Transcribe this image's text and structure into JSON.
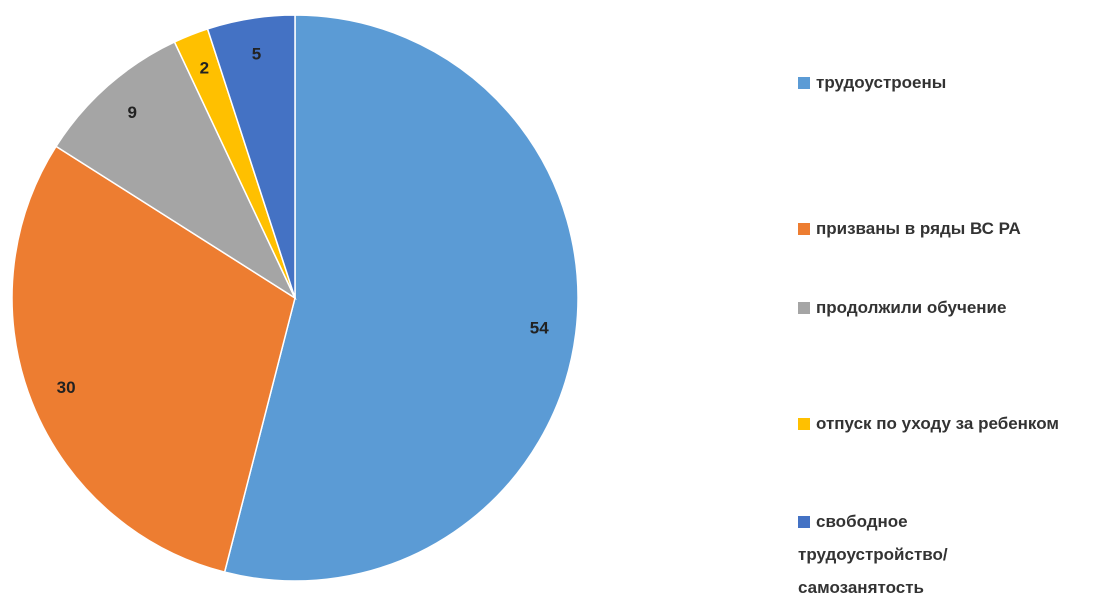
{
  "chart_data": {
    "type": "pie",
    "categories": [
      "трудоустроены",
      "призваны в ряды ВС РА",
      "продолжили обучение",
      "отпуск по уходу за ребенком",
      "свободное трудоустройство/самозанятость"
    ],
    "values": [
      54,
      30,
      9,
      2,
      5
    ],
    "colors": [
      "#5b9bd5",
      "#ed7d31",
      "#a5a5a5",
      "#ffc000",
      "#4472c4"
    ]
  }
}
